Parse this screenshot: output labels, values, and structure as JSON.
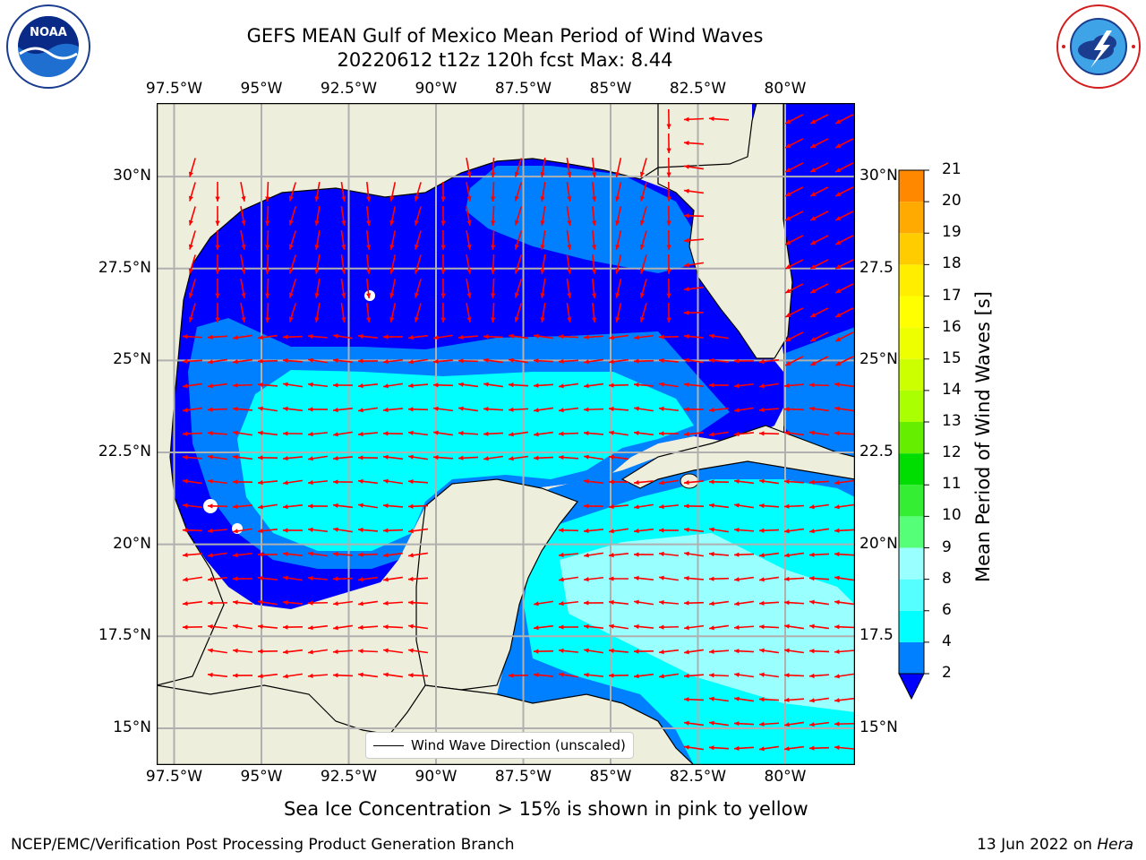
{
  "header": {
    "title_line1": "GEFS MEAN Gulf of Mexico Mean Period of Wind Waves",
    "title_line2": "20220612 t12z 120h fcst   Max: 8.44"
  },
  "logos": {
    "left": {
      "icon": "noaa-logo",
      "text": "NOAA",
      "ring_text": "NATIONAL OCEANIC AND ATMOSPHERIC ADMINISTRATION · U.S. DEPARTMENT OF COMMERCE"
    },
    "right": {
      "icon": "nws-logo",
      "ring_text": "NATIONAL WEATHER SERVICE"
    }
  },
  "map": {
    "lon_labels": [
      "97.5°W",
      "95°W",
      "92.5°W",
      "90°W",
      "87.5°W",
      "85°W",
      "82.5°W",
      "80°W"
    ],
    "lat_labels_left": [
      "30°N",
      "27.5°N",
      "25°N",
      "22.5°N",
      "20°N",
      "17.5°N",
      "15°N"
    ],
    "lat_labels_right": [
      "30°N",
      "27.5",
      "25°N",
      "22.5",
      "20°N",
      "17.5",
      "15°N"
    ],
    "lon_range": [
      -98,
      -78
    ],
    "lat_range": [
      14,
      32
    ],
    "colors": {
      "land": "#eeeedc",
      "ocean_2_4": "#0000ff",
      "ocean_4_6": "#0080ff",
      "ocean_6_8": "#00ffff",
      "ocean_8_9": "#99ffff",
      "arrows": "#ff0000",
      "grid": "#b0b0b0"
    },
    "legend_text": "Wind Wave Direction (unscaled)"
  },
  "colorbar": {
    "label": "Mean Period of Wind Waves [s]",
    "ticks": [
      "21",
      "20",
      "19",
      "18",
      "17",
      "16",
      "15",
      "14",
      "13",
      "12",
      "11",
      "10",
      "9",
      "8",
      "6",
      "4",
      "2"
    ],
    "levels": [
      2,
      4,
      6,
      8,
      9,
      10,
      11,
      12,
      13,
      14,
      15,
      16,
      17,
      18,
      19,
      20,
      21
    ],
    "colors": [
      "#0000ff",
      "#0080ff",
      "#00ffff",
      "#66ffff",
      "#99ffff",
      "#55ff77",
      "#22dd22",
      "#00ff00",
      "#55ff00",
      "#aaff00",
      "#ccff00",
      "#eeff00",
      "#ffff00",
      "#ffee00",
      "#ffcc00",
      "#ffaa00",
      "#ff8800",
      "#ff6600",
      "#ff4400",
      "#ff2200",
      "#ff0000"
    ]
  },
  "caption": "Sea Ice Concentration > 15% is shown in pink to yellow",
  "footer": {
    "left": "NCEP/EMC/Verification Post Processing Product Generation Branch",
    "date": "13 Jun 2022 on ",
    "host": "Hera"
  }
}
